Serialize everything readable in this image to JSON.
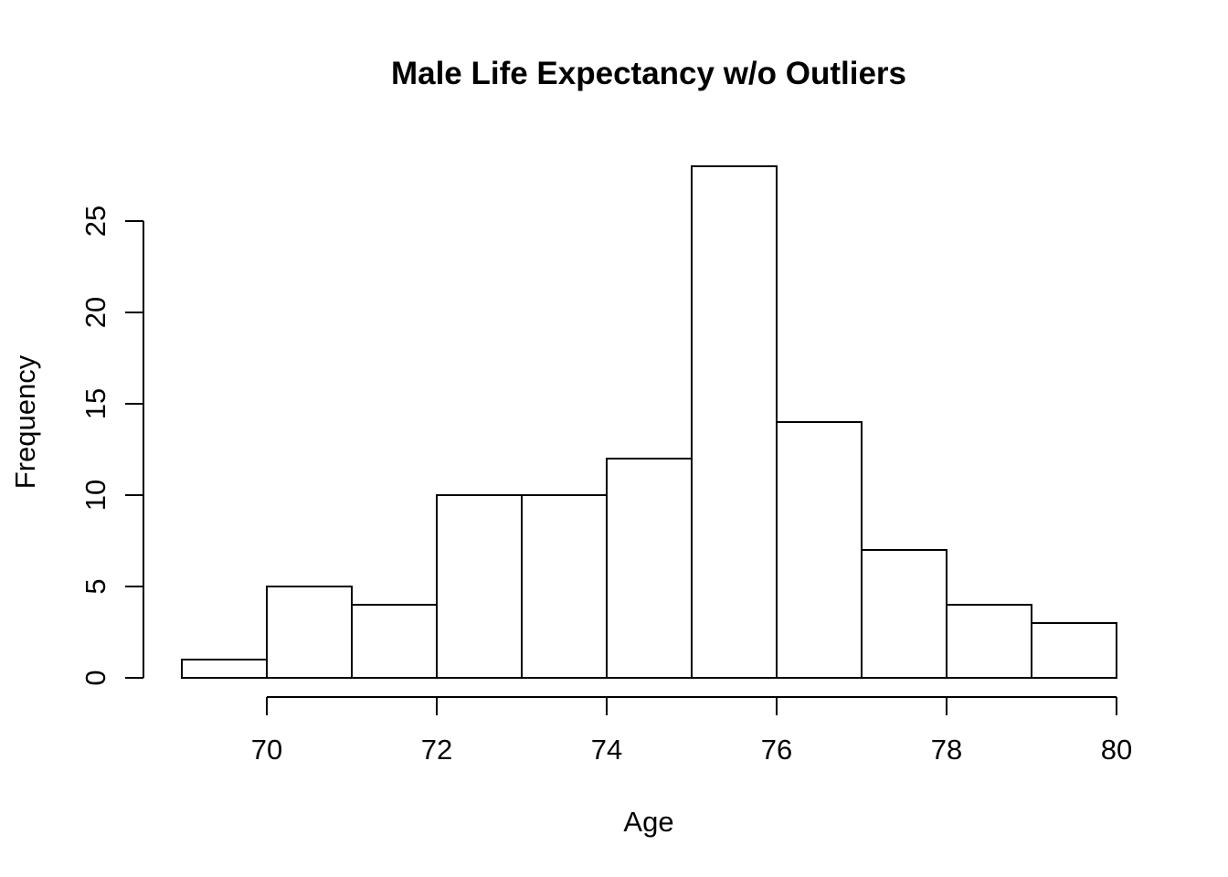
{
  "chart_data": {
    "type": "bar",
    "subtype": "histogram",
    "title": "Male Life Expectancy w/o Outliers",
    "xlabel": "Age",
    "ylabel": "Frequency",
    "bin_edges": [
      69,
      70,
      71,
      72,
      73,
      74,
      75,
      76,
      77,
      78,
      79,
      80
    ],
    "counts": [
      1,
      5,
      4,
      10,
      10,
      12,
      28,
      14,
      7,
      4,
      3
    ],
    "x_ticks": [
      70,
      72,
      74,
      76,
      78,
      80
    ],
    "y_ticks": [
      0,
      5,
      10,
      15,
      20,
      25
    ],
    "xlim": [
      69,
      80
    ],
    "ylim": [
      0,
      28
    ],
    "grid": false,
    "legend": false,
    "colors": {
      "bar_fill": "#ffffff",
      "bar_stroke": "#000000",
      "axis": "#000000",
      "text": "#000000",
      "background": "#ffffff"
    }
  }
}
